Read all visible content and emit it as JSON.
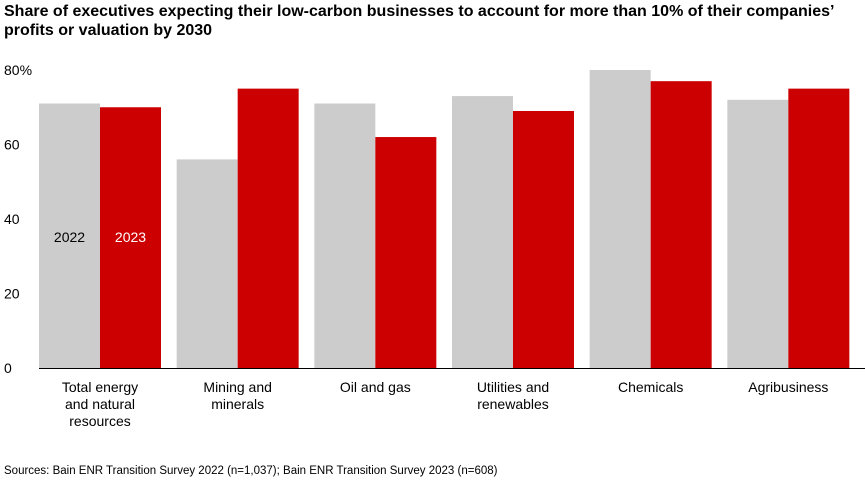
{
  "chart_data": {
    "type": "bar",
    "title": "Share of executives expecting their low-carbon businesses to account for more than 10% of their companies’ profits or valuation by 2030",
    "categories": [
      [
        "Total energy",
        "and natural",
        "resources"
      ],
      [
        "Mining and",
        "minerals"
      ],
      [
        "Oil and gas"
      ],
      [
        "Utilities and",
        "renewables"
      ],
      [
        "Chemicals"
      ],
      [
        "Agribusiness"
      ]
    ],
    "series": [
      {
        "name": "2022",
        "color": "#cccccc",
        "label_color": "#000000",
        "values": [
          71,
          56,
          71,
          73,
          80,
          72
        ]
      },
      {
        "name": "2023",
        "color": "#cc0000",
        "label_color": "#ffffff",
        "values": [
          70,
          75,
          62,
          69,
          77,
          75
        ]
      }
    ],
    "yticks": [
      "0",
      "20",
      "40",
      "60",
      "80%"
    ],
    "ytick_values": [
      0,
      20,
      40,
      60,
      80
    ],
    "ylim": [
      0,
      80
    ],
    "grid": false,
    "legend": "inside-first-bars"
  },
  "source": "Sources: Bain ENR Transition Survey 2022 (n=1,037); Bain ENR Transition Survey 2023 (n=608)"
}
